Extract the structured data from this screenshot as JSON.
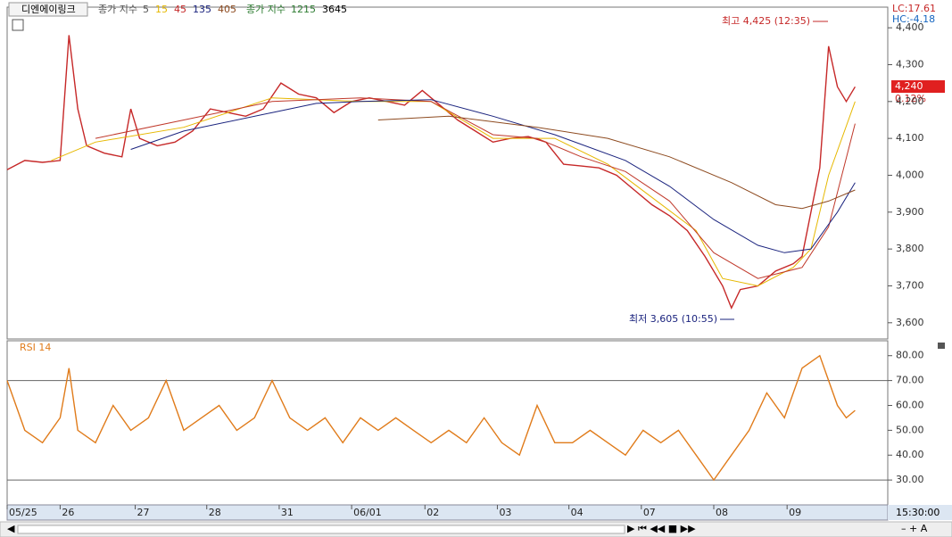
{
  "header": {
    "name": "디엔에이링크",
    "ma_label": "종가 지수",
    "ma_periods": [
      "5",
      "15",
      "45",
      "135",
      "405"
    ],
    "ma2_label": "종가 지수",
    "ma2_periods": [
      "1215",
      "3645"
    ],
    "lc": "LC:17.61",
    "hc": "HC:-4.18",
    "last_price": "4,240",
    "change": "0.12%",
    "time": "15:30:00"
  },
  "chart_data": [
    {
      "type": "line",
      "annotations": [
        "최고 4,425 (12:35)",
        "최저 3,605 (10:55)"
      ],
      "xlim": [
        0,
        100
      ],
      "ylim": [
        3556,
        4456
      ],
      "xticks": [
        {
          "value": 0,
          "label": "05/25"
        },
        {
          "value": 6,
          "label": "26"
        },
        {
          "value": 14.5,
          "label": "27"
        },
        {
          "value": 22.6,
          "label": "28"
        },
        {
          "value": 30.8,
          "label": "31"
        },
        {
          "value": 39,
          "label": "06/01"
        },
        {
          "value": 47.3,
          "label": "02"
        },
        {
          "value": 55.5,
          "label": "03"
        },
        {
          "value": 63.6,
          "label": "04"
        },
        {
          "value": 71.8,
          "label": "07"
        },
        {
          "value": 80,
          "label": "08"
        },
        {
          "value": 88.3,
          "label": "09"
        }
      ],
      "yticks": [
        {
          "value": 3600,
          "label": "3,600"
        },
        {
          "value": 3700,
          "label": "3,700"
        },
        {
          "value": 3800,
          "label": "3,800"
        },
        {
          "value": 3900,
          "label": "3,900"
        },
        {
          "value": 4000,
          "label": "4,000"
        },
        {
          "value": 4100,
          "label": "4,100"
        },
        {
          "value": 4200,
          "label": "4,200"
        },
        {
          "value": 4300,
          "label": "4,300"
        },
        {
          "value": 4400,
          "label": "4,400"
        }
      ],
      "series": [
        {
          "color": "#c62828",
          "x": [
            0,
            2,
            4,
            6,
            7,
            8,
            9,
            11,
            13,
            14,
            15,
            17,
            19,
            21,
            23,
            25,
            27,
            29,
            31,
            33,
            35,
            37,
            39,
            41,
            43,
            45,
            47,
            49,
            51,
            53,
            55,
            57,
            59,
            61,
            63,
            65,
            67,
            69,
            71,
            73,
            75,
            77,
            79,
            81,
            82,
            83,
            85,
            87,
            89,
            90,
            91,
            92,
            93,
            94,
            95,
            96
          ],
          "values": [
            4015,
            4040,
            4035,
            4040,
            4380,
            4180,
            4080,
            4060,
            4050,
            4180,
            4100,
            4080,
            4090,
            4120,
            4180,
            4170,
            4160,
            4180,
            4250,
            4220,
            4210,
            4170,
            4200,
            4210,
            4200,
            4190,
            4230,
            4190,
            4150,
            4120,
            4090,
            4100,
            4105,
            4090,
            4030,
            4025,
            4020,
            4000,
            3960,
            3920,
            3890,
            3850,
            3780,
            3700,
            3640,
            3690,
            3700,
            3740,
            3760,
            3780,
            3900,
            4020,
            4350,
            4240,
            4200,
            4240
          ]
        },
        {
          "color": "#e6b800",
          "x": [
            5,
            10,
            20,
            30,
            40,
            48,
            55,
            62,
            68,
            73,
            78,
            81,
            85,
            89,
            91,
            93,
            96
          ],
          "values": [
            4040,
            4090,
            4130,
            4210,
            4200,
            4200,
            4100,
            4100,
            4030,
            3940,
            3850,
            3720,
            3700,
            3750,
            3800,
            4000,
            4200
          ]
        },
        {
          "color": "#c0392b",
          "x": [
            10,
            20,
            30,
            40,
            48,
            55,
            60,
            65,
            70,
            75,
            80,
            85,
            90,
            93,
            96
          ],
          "values": [
            4100,
            4150,
            4200,
            4210,
            4200,
            4110,
            4100,
            4050,
            4010,
            3930,
            3790,
            3720,
            3750,
            3860,
            4140
          ]
        },
        {
          "color": "#1a237e",
          "x": [
            14,
            20,
            30,
            35,
            40,
            48,
            55,
            62,
            70,
            75,
            80,
            85,
            88,
            91,
            94,
            96
          ],
          "values": [
            4070,
            4120,
            4170,
            4195,
            4200,
            4205,
            4160,
            4110,
            4040,
            3970,
            3880,
            3810,
            3790,
            3800,
            3900,
            3980
          ]
        },
        {
          "color": "#8d4a1f",
          "x": [
            42,
            50,
            60,
            68,
            75,
            82,
            87,
            90,
            93,
            96
          ],
          "values": [
            4150,
            4160,
            4130,
            4100,
            4050,
            3980,
            3920,
            3910,
            3930,
            3960
          ]
        }
      ]
    },
    {
      "type": "line",
      "title": "RSI 14",
      "xlim": [
        0,
        100
      ],
      "ylim": [
        20,
        86
      ],
      "levels": [
        70,
        30
      ],
      "yticks": [
        {
          "value": 30,
          "label": "30.00"
        },
        {
          "value": 40,
          "label": "40.00"
        },
        {
          "value": 50,
          "label": "50.00"
        },
        {
          "value": 60,
          "label": "60.00"
        },
        {
          "value": 70,
          "label": "70.00"
        },
        {
          "value": 80,
          "label": "80.00"
        }
      ],
      "series": [
        {
          "color": "#e07b1a",
          "x": [
            0,
            2,
            4,
            6,
            7,
            8,
            10,
            12,
            14,
            16,
            18,
            20,
            22,
            24,
            26,
            28,
            30,
            32,
            34,
            36,
            38,
            40,
            42,
            44,
            46,
            48,
            50,
            52,
            54,
            56,
            58,
            60,
            62,
            64,
            66,
            68,
            70,
            72,
            74,
            76,
            78,
            80,
            82,
            84,
            86,
            88,
            90,
            92,
            93,
            94,
            95,
            96
          ],
          "values": [
            70,
            50,
            45,
            55,
            75,
            50,
            45,
            60,
            50,
            55,
            70,
            50,
            55,
            60,
            50,
            55,
            70,
            55,
            50,
            55,
            45,
            55,
            50,
            55,
            50,
            45,
            50,
            45,
            55,
            45,
            40,
            60,
            45,
            45,
            50,
            45,
            40,
            50,
            45,
            50,
            40,
            30,
            40,
            50,
            65,
            55,
            75,
            80,
            70,
            60,
            55,
            58
          ]
        }
      ]
    }
  ]
}
